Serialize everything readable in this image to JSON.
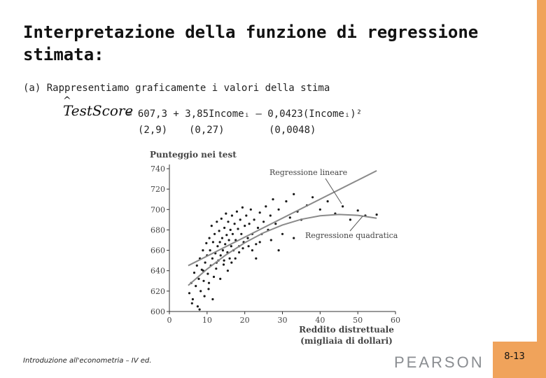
{
  "slide": {
    "title": "Interpretazione della funzione di regressione stimata:",
    "intro": "(a)  Rappresentiamo graficamente i valori della stima",
    "lhs": "TestScore",
    "lhs_hat": "^",
    "equation": "= 607,3 + 3,85Incomeᵢ – 0,0423(Incomeᵢ)²",
    "se": [
      "(2,9)",
      "(0,27)",
      "(0,0048)"
    ],
    "footer": "Introduzione all'econometria – IV ed.",
    "publisher": "PEARSON",
    "page_number": "8-13"
  },
  "colors": {
    "accent": "#f0a35b",
    "background": "#ffffff",
    "points": "#1a1a1a",
    "fit": "#8a8a8a"
  },
  "chart_data": {
    "type": "scatter",
    "title": "Punteggio nei test",
    "xlabel": "Reddito distrettuale\n(migliaia di dollari)",
    "xlabel_lines": [
      "Reddito distrettuale",
      "(migliaia di dollari)"
    ],
    "ylabel": "Punteggio nei test",
    "xlim": [
      0,
      60
    ],
    "ylim": [
      600,
      740
    ],
    "xticks": [
      0,
      10,
      20,
      30,
      40,
      50,
      60
    ],
    "yticks": [
      600,
      620,
      640,
      660,
      680,
      700,
      720,
      740
    ],
    "annotations": [
      "Regressione lineare",
      "Regressione quadratica"
    ],
    "series": [
      {
        "name": "Regressione lineare",
        "kind": "line",
        "x": [
          5,
          55
        ],
        "y": [
          645.0,
          738.0
        ]
      },
      {
        "name": "Regressione quadratica",
        "kind": "curve",
        "x": [
          5,
          10,
          15,
          20,
          25,
          30,
          35,
          40,
          45,
          50,
          55
        ],
        "y": [
          625.5,
          641.6,
          655.5,
          667.4,
          677.2,
          684.8,
          690.4,
          693.8,
          695.1,
          694.3,
          691.4
        ]
      },
      {
        "name": "",
        "kind": "points",
        "points": [
          [
            5.3,
            618
          ],
          [
            5.8,
            628
          ],
          [
            6.2,
            612
          ],
          [
            6.6,
            638
          ],
          [
            7.0,
            625
          ],
          [
            7.3,
            645
          ],
          [
            7.5,
            605
          ],
          [
            7.8,
            632
          ],
          [
            8.1,
            652
          ],
          [
            8.3,
            620
          ],
          [
            8.6,
            641
          ],
          [
            8.9,
            660
          ],
          [
            9.1,
            630
          ],
          [
            9.3,
            615
          ],
          [
            9.5,
            648
          ],
          [
            9.8,
            667
          ],
          [
            10.0,
            655
          ],
          [
            10.2,
            637
          ],
          [
            10.4,
            622
          ],
          [
            10.6,
            672
          ],
          [
            10.8,
            660
          ],
          [
            11.0,
            645
          ],
          [
            11.2,
            684
          ],
          [
            11.4,
            652
          ],
          [
            11.6,
            668
          ],
          [
            11.8,
            634
          ],
          [
            12.0,
            676
          ],
          [
            12.2,
            657
          ],
          [
            12.4,
            642
          ],
          [
            12.6,
            688
          ],
          [
            12.8,
            664
          ],
          [
            13.0,
            650
          ],
          [
            13.2,
            679
          ],
          [
            13.4,
            668
          ],
          [
            13.6,
            655
          ],
          [
            13.8,
            691
          ],
          [
            14.0,
            672
          ],
          [
            14.2,
            660
          ],
          [
            14.4,
            646
          ],
          [
            14.6,
            682
          ],
          [
            14.8,
            666
          ],
          [
            15.0,
            696
          ],
          [
            15.2,
            675
          ],
          [
            15.4,
            658
          ],
          [
            15.6,
            688
          ],
          [
            15.8,
            670
          ],
          [
            16.0,
            652
          ],
          [
            16.2,
            680
          ],
          [
            16.4,
            664
          ],
          [
            16.6,
            694
          ],
          [
            16.8,
            676
          ],
          [
            17.0,
            660
          ],
          [
            17.3,
            686
          ],
          [
            17.6,
            670
          ],
          [
            17.9,
            698
          ],
          [
            18.2,
            681
          ],
          [
            18.5,
            664
          ],
          [
            18.8,
            690
          ],
          [
            19.1,
            676
          ],
          [
            19.4,
            702
          ],
          [
            19.7,
            668
          ],
          [
            20.0,
            684
          ],
          [
            20.4,
            694
          ],
          [
            20.8,
            672
          ],
          [
            21.2,
            686
          ],
          [
            21.6,
            700
          ],
          [
            22.0,
            676
          ],
          [
            22.5,
            690
          ],
          [
            23.0,
            666
          ],
          [
            23.5,
            682
          ],
          [
            24.0,
            697
          ],
          [
            24.5,
            676
          ],
          [
            25.0,
            688
          ],
          [
            25.6,
            703
          ],
          [
            26.2,
            680
          ],
          [
            26.8,
            694
          ],
          [
            27.5,
            710
          ],
          [
            28.2,
            686
          ],
          [
            29.0,
            700
          ],
          [
            30.0,
            676
          ],
          [
            31.0,
            708
          ],
          [
            32.0,
            692
          ],
          [
            33.0,
            715
          ],
          [
            34.0,
            698
          ],
          [
            35.0,
            690
          ],
          [
            36.5,
            704
          ],
          [
            38.0,
            712
          ],
          [
            40.0,
            700
          ],
          [
            42.0,
            708
          ],
          [
            44.0,
            696
          ],
          [
            46.0,
            703
          ],
          [
            48.0,
            690
          ],
          [
            50.0,
            699
          ],
          [
            52.0,
            694
          ],
          [
            55.0,
            695
          ],
          [
            6.0,
            608
          ],
          [
            8.0,
            602
          ],
          [
            9.0,
            640
          ],
          [
            10.5,
            628
          ],
          [
            11.5,
            612
          ],
          [
            12.5,
            648
          ],
          [
            13.5,
            632
          ],
          [
            14.5,
            650
          ],
          [
            15.5,
            640
          ],
          [
            16.5,
            648
          ],
          [
            17.5,
            652
          ],
          [
            18.5,
            658
          ],
          [
            19.5,
            662
          ],
          [
            21.0,
            664
          ],
          [
            22.0,
            660
          ],
          [
            23.0,
            652
          ],
          [
            24.0,
            668
          ],
          [
            27.0,
            670
          ],
          [
            29.0,
            660
          ],
          [
            33.0,
            672
          ]
        ]
      }
    ]
  }
}
